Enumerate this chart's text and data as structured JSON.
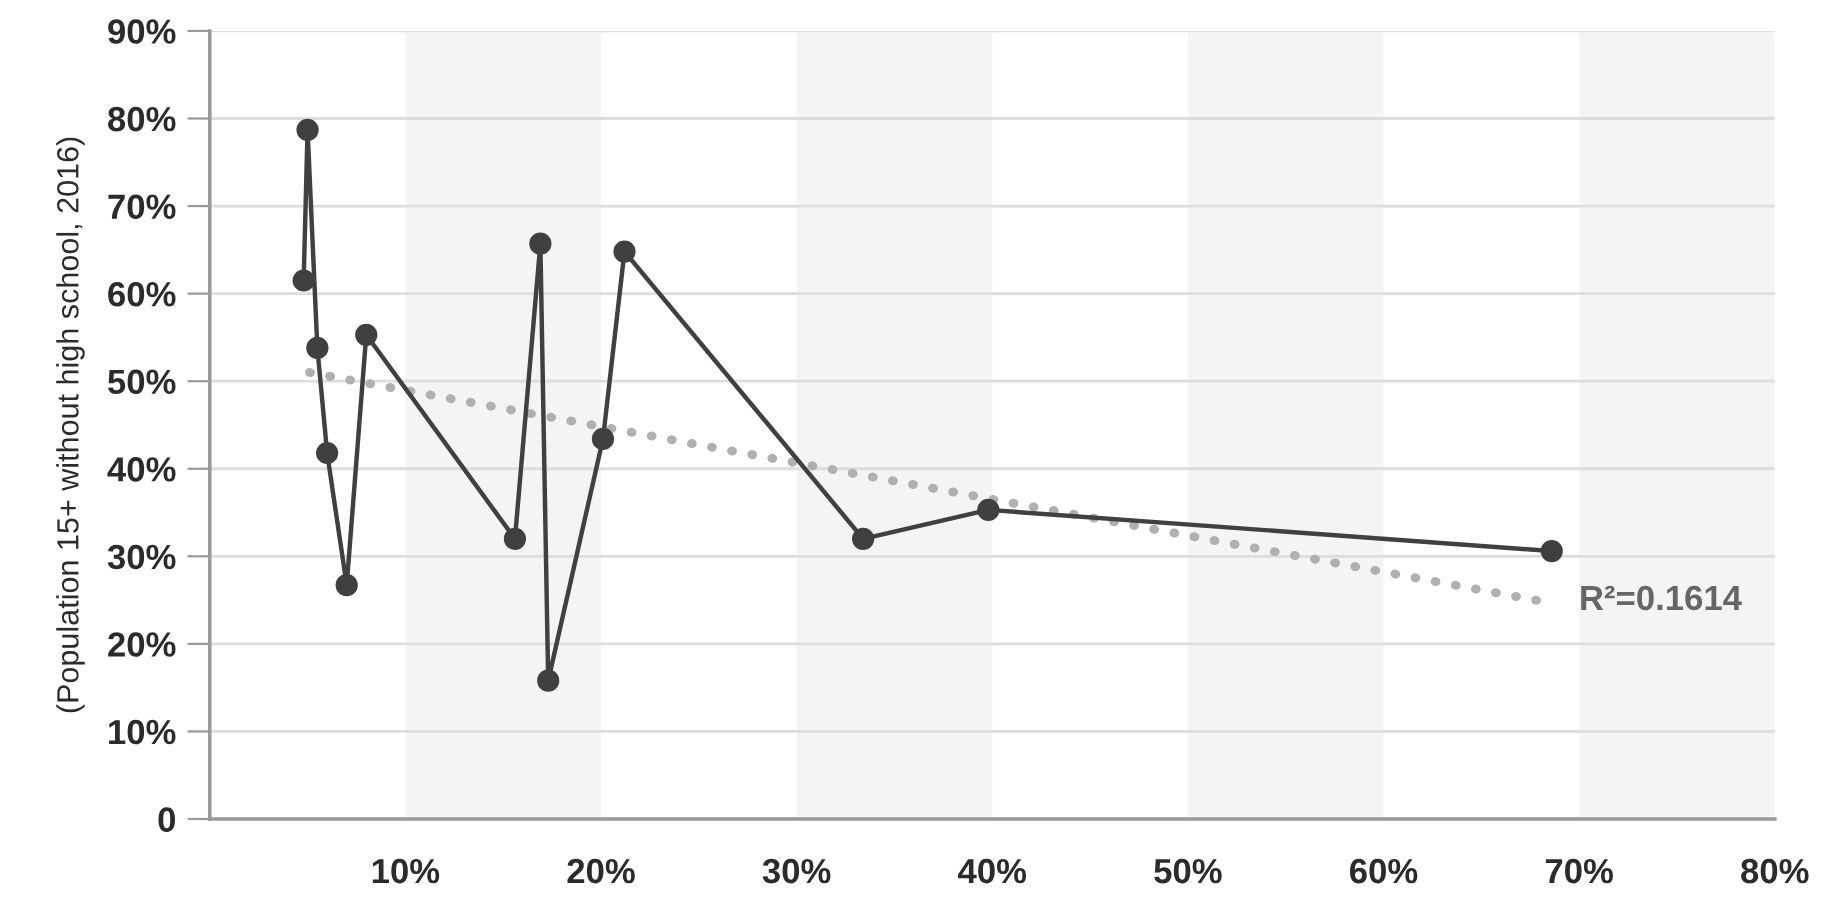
{
  "chart_data": {
    "type": "line",
    "ylabel": "(Population 15+ without high school, 2016)",
    "xlim": [
      0,
      80
    ],
    "xticks": [
      {
        "value": 10,
        "label": "10%"
      },
      {
        "value": 20,
        "label": "20%"
      },
      {
        "value": 30,
        "label": "30%"
      },
      {
        "value": 40,
        "label": "40%"
      },
      {
        "value": 50,
        "label": "50%"
      },
      {
        "value": 60,
        "label": "60%"
      },
      {
        "value": 70,
        "label": "70%"
      },
      {
        "value": 80,
        "label": "80%"
      }
    ],
    "ylim": [
      0,
      90
    ],
    "yticks": [
      0,
      {
        "value": 10,
        "label": "10%"
      },
      {
        "value": 20,
        "label": "20%"
      },
      {
        "value": 30,
        "label": "30%"
      },
      {
        "value": 40,
        "label": "40%"
      },
      {
        "value": 50,
        "label": "50%"
      },
      {
        "value": 60,
        "label": "60%"
      },
      {
        "value": 70,
        "label": "70%"
      },
      {
        "value": 80,
        "label": "80%"
      },
      {
        "value": 90,
        "label": "90%"
      }
    ],
    "grid": "y",
    "series": [
      {
        "color": "#404040",
        "marker": "circle",
        "line_style": "solid",
        "x": [
          4.8,
          5.0,
          5.5,
          6.0,
          7.0,
          8.0,
          15.6,
          16.9,
          17.3,
          20.1,
          21.2,
          33.4,
          39.8,
          68.6
        ],
        "values": [
          61.5,
          78.7,
          53.8,
          41.8,
          26.7,
          55.3,
          32.0,
          65.7,
          15.8,
          43.4,
          64.8,
          32.0,
          35.3,
          30.6
        ]
      },
      {
        "color": "#b0b0b0",
        "marker": "none",
        "line_style": "dotted",
        "x": [
          5.1,
          68.0
        ],
        "values": [
          51.0,
          24.9
        ]
      }
    ],
    "bands": [
      {
        "axis": "x",
        "from": 10,
        "to": 20,
        "color": "#f4f4f4"
      },
      {
        "axis": "x",
        "from": 30,
        "to": 40,
        "color": "#f4f4f4"
      },
      {
        "axis": "x",
        "from": 50,
        "to": 60,
        "color": "#f4f4f4"
      },
      {
        "axis": "x",
        "from": 70,
        "to": 80,
        "color": "#f4f4f4"
      }
    ],
    "annotations": [
      {
        "text": "R²=0.1614",
        "x": 68.0,
        "y": 24.9
      }
    ]
  }
}
